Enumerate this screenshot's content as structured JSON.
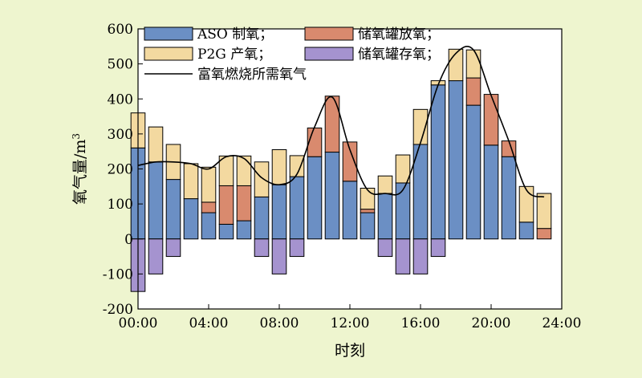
{
  "chart_data": {
    "type": "bar",
    "xlabel": "时刻",
    "ylabel": "氧气量/m",
    "ylabel_sup": "3",
    "ylim": [
      -200,
      600
    ],
    "yticks": [
      -200,
      -100,
      0,
      100,
      200,
      300,
      400,
      500,
      600
    ],
    "xlim": [
      0,
      24
    ],
    "xtick_labels": [
      "00:00",
      "04:00",
      "08:00",
      "12:00",
      "16:00",
      "20:00",
      "24:00"
    ],
    "x": [
      0,
      1,
      2,
      3,
      4,
      5,
      6,
      7,
      8,
      9,
      10,
      11,
      12,
      13,
      14,
      15,
      16,
      17,
      18,
      19,
      20,
      21,
      22,
      23
    ],
    "legend": {
      "position": "top-left",
      "entries": [
        {
          "key": "aso",
          "label": "ASO 制氧；"
        },
        {
          "key": "tank_discharge",
          "label": "储氧罐放氧；"
        },
        {
          "key": "p2g",
          "label": "P2G 产氧；"
        },
        {
          "key": "tank_storage",
          "label": "储氧罐存氧；"
        },
        {
          "key": "demand",
          "label": "富氧燃烧所需氧气"
        }
      ]
    },
    "colors": {
      "aso": "#6b8fc4",
      "tank_discharge": "#d98a6e",
      "p2g": "#f3d9a0",
      "tank_storage": "#a593cf",
      "demand": "#000000"
    },
    "series": [
      {
        "key": "aso",
        "values": [
          260,
          220,
          170,
          115,
          75,
          42,
          52,
          120,
          155,
          178,
          235,
          248,
          165,
          75,
          130,
          160,
          270,
          440,
          452,
          382,
          268,
          235,
          48,
          0
        ]
      },
      {
        "key": "tank_discharge",
        "values": [
          0,
          0,
          0,
          0,
          30,
          110,
          100,
          0,
          0,
          0,
          82,
          160,
          112,
          10,
          0,
          0,
          0,
          0,
          0,
          78,
          145,
          45,
          0,
          30
        ]
      },
      {
        "key": "p2g",
        "values": [
          100,
          100,
          100,
          100,
          100,
          85,
          85,
          100,
          100,
          60,
          0,
          0,
          0,
          60,
          50,
          80,
          100,
          12,
          90,
          80,
          0,
          0,
          102,
          100
        ]
      },
      {
        "key": "tank_storage",
        "values": [
          -150,
          -100,
          -50,
          0,
          0,
          0,
          0,
          -50,
          -100,
          -50,
          0,
          0,
          0,
          0,
          -50,
          -100,
          -100,
          -50,
          0,
          0,
          0,
          0,
          0,
          0
        ]
      },
      {
        "key": "demand",
        "type": "line",
        "values": [
          210,
          220,
          220,
          215,
          200,
          235,
          230,
          175,
          155,
          185,
          320,
          405,
          255,
          140,
          130,
          140,
          275,
          440,
          530,
          540,
          410,
          280,
          140,
          120
        ]
      }
    ]
  }
}
